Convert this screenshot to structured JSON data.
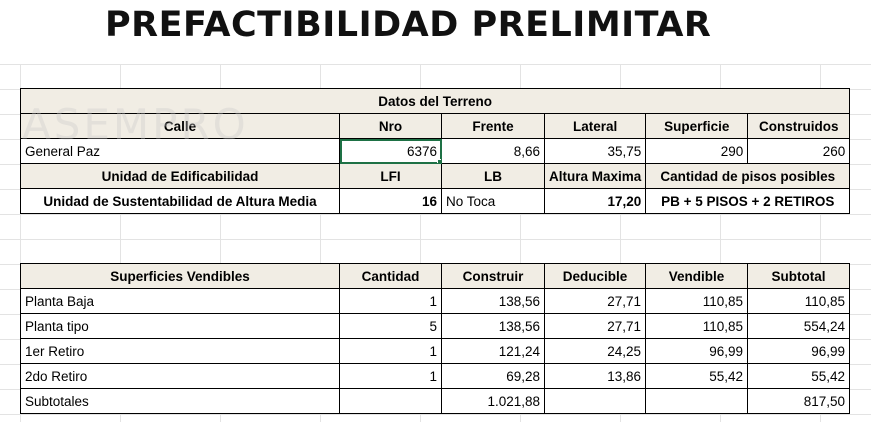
{
  "title": "PREFACTIBILIDAD PRELIMITAR",
  "terreno": {
    "section_title": "Datos del Terreno",
    "headers": [
      "Calle",
      "Nro",
      "Frente",
      "Lateral",
      "Superficie",
      "Construidos"
    ],
    "row": [
      "General Paz",
      "6376",
      "8,66",
      "35,75",
      "290",
      "260"
    ],
    "headers2": [
      "Unidad de Edificabilidad",
      "LFI",
      "LB",
      "Altura Maxima",
      "Cantidad de pisos posibles"
    ],
    "row2": [
      "Unidad de Sustentabilidad de Altura Media",
      "16",
      "No Toca",
      "17,20",
      "PB + 5 PISOS + 2 RETIROS"
    ]
  },
  "superficies": {
    "headers": [
      "Superficies Vendibles",
      "Cantidad",
      "Construir",
      "Deducible",
      "Vendible",
      "Subtotal"
    ],
    "rows": [
      [
        "Planta Baja",
        "1",
        "138,56",
        "27,71",
        "110,85",
        "110,85"
      ],
      [
        "Planta tipo",
        "5",
        "138,56",
        "27,71",
        "110,85",
        "554,24"
      ],
      [
        "1er Retiro",
        "1",
        "121,24",
        "24,25",
        "96,99",
        "96,99"
      ],
      [
        "2do Retiro",
        "1",
        "69,28",
        "13,86",
        "55,42",
        "55,42"
      ]
    ],
    "totals": [
      "Subtotales",
      "",
      "1.021,88",
      "",
      "",
      "817,50"
    ]
  },
  "watermark": "ASEMPRO"
}
